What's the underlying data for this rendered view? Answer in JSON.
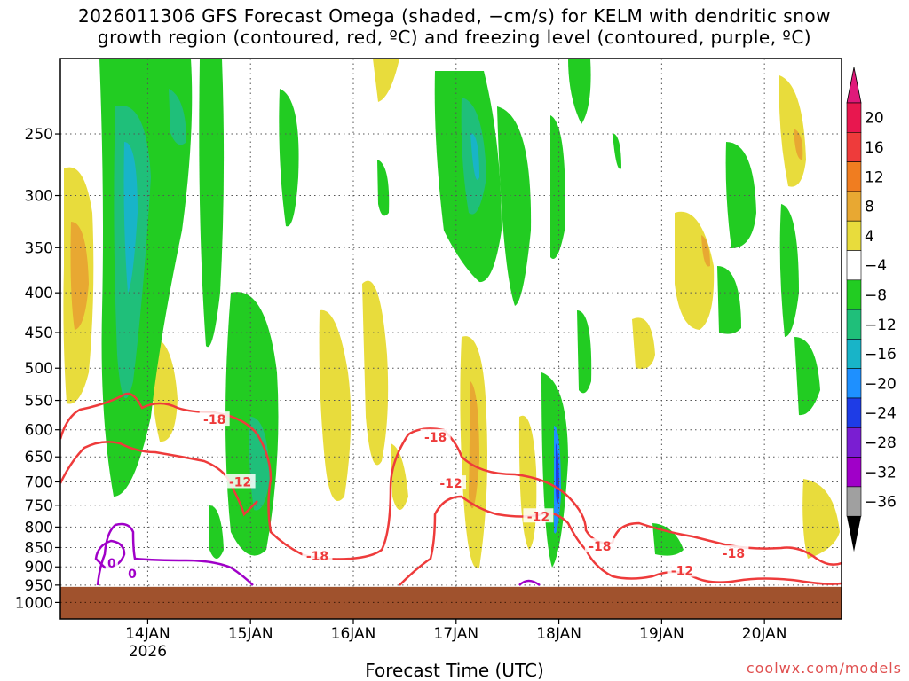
{
  "chart_data": {
    "type": "heatmap",
    "title_line1": "2026011306 GFS Forecast Omega (shaded, −cm/s) for KELM with dendritic snow",
    "title_line2": "growth region (contoured, red, ºC) and freezing level (contoured, purple, ºC)",
    "xlabel": "Forecast Time (UTC)",
    "credit": "coolwx.com/models",
    "y_axis": {
      "scale": "log",
      "range": [
        1050,
        200
      ],
      "ticks": [
        "250",
        "300",
        "350",
        "400",
        "450",
        "500",
        "550",
        "600",
        "650",
        "700",
        "750",
        "800",
        "850",
        "900",
        "950",
        "1000"
      ]
    },
    "x_axis": {
      "range_hours": [
        -17,
        135
      ],
      "ticks": [
        {
          "label": "14JAN",
          "sub": "2026",
          "hour": 0
        },
        {
          "label": "15JAN",
          "sub": "",
          "hour": 20
        },
        {
          "label": "16JAN",
          "sub": "",
          "hour": 40
        },
        {
          "label": "17JAN",
          "sub": "",
          "hour": 60
        },
        {
          "label": "18JAN",
          "sub": "",
          "hour": 80
        },
        {
          "label": "19JAN",
          "sub": "",
          "hour": 100
        },
        {
          "label": "20JAN",
          "sub": "",
          "hour": 120
        }
      ]
    },
    "grid": true,
    "colorbar": {
      "labels": [
        "20",
        "16",
        "12",
        "8",
        "4",
        "−4",
        "−8",
        "−12",
        "−16",
        "−20",
        "−24",
        "−28",
        "−32",
        "−36"
      ],
      "colors": [
        "#e8174f",
        "#ee3b3b",
        "#f07d20",
        "#e8a832",
        "#e8dc3c",
        "#ffffff",
        "#22cc22",
        "#1fbf7a",
        "#18b4c8",
        "#1e90ff",
        "#1e3ce6",
        "#7a1ed2",
        "#a000c8",
        "#a0a0a0"
      ],
      "arrow_top": "#e0197a",
      "arrow_bottom": "#000000"
    },
    "contour_labels": [
      {
        "text": "-18",
        "hour": 13,
        "p": 582
      },
      {
        "text": "-12",
        "hour": 18,
        "p": 700
      },
      {
        "text": "-18",
        "hour": 33,
        "p": 872
      },
      {
        "text": "-18",
        "hour": 56,
        "p": 613
      },
      {
        "text": "-12",
        "hour": 59,
        "p": 703
      },
      {
        "text": "-12",
        "hour": 76,
        "p": 775
      },
      {
        "text": "-18",
        "hour": 88,
        "p": 847
      },
      {
        "text": "-12",
        "hour": 104,
        "p": 910
      },
      {
        "text": "-18",
        "hour": 114,
        "p": 865
      },
      {
        "text": "0",
        "hour": -7,
        "p": 890
      },
      {
        "text": "0",
        "hour": -3,
        "p": 918
      }
    ],
    "ground_color": "#a0522d"
  }
}
